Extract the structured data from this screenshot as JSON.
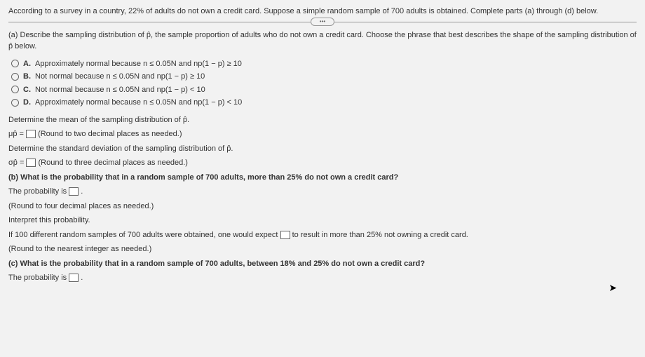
{
  "intro": "According to a survey in a country, 22% of adults do not own a credit card. Suppose a simple random sample of 700 adults is obtained. Complete parts (a) through (d) below.",
  "partA": {
    "prompt": "(a) Describe the sampling distribution of p̂, the sample proportion of adults who do not own a credit card. Choose the phrase that best describes the shape of the sampling distribution of p̂ below.",
    "options": {
      "A": "Approximately normal because n ≤ 0.05N and np(1 − p) ≥ 10",
      "B": "Not normal because n ≤ 0.05N and np(1 − p) ≥ 10",
      "C": "Not normal because n ≤ 0.05N and np(1 − p) < 10",
      "D": "Approximately normal because n ≤ 0.05N and np(1 − p) < 10"
    },
    "meanPrompt": "Determine the mean of the sampling distribution of p̂.",
    "meanLine": {
      "prefix": "μp̂ = ",
      "suffix": " (Round to two decimal places as needed.)"
    },
    "sdPrompt": "Determine the standard deviation of the sampling distribution of p̂.",
    "sdLine": {
      "prefix": "σp̂ = ",
      "suffix": " (Round to three decimal places as needed.)"
    }
  },
  "partB": {
    "prompt": "(b) What is the probability that in a random sample of 700 adults, more than 25% do not own a credit card?",
    "probLine": {
      "prefix": "The probability is ",
      "suffix": "."
    },
    "round": "(Round to four decimal places as needed.)",
    "interpret": "Interpret this probability.",
    "expectLine": {
      "prefix": "If 100 different random samples of 700 adults were obtained, one would expect ",
      "suffix": " to result in more than 25% not owning a credit card."
    },
    "expectRound": "(Round to the nearest integer as needed.)"
  },
  "partC": {
    "prompt": "(c) What is the probability that in a random sample of 700 adults, between 18% and 25% do not own a credit card?",
    "probLine": {
      "prefix": "The probability is ",
      "suffix": "."
    }
  },
  "labels": {
    "A": "A.",
    "B": "B.",
    "C": "C.",
    "D": "D."
  },
  "pill": "•••"
}
